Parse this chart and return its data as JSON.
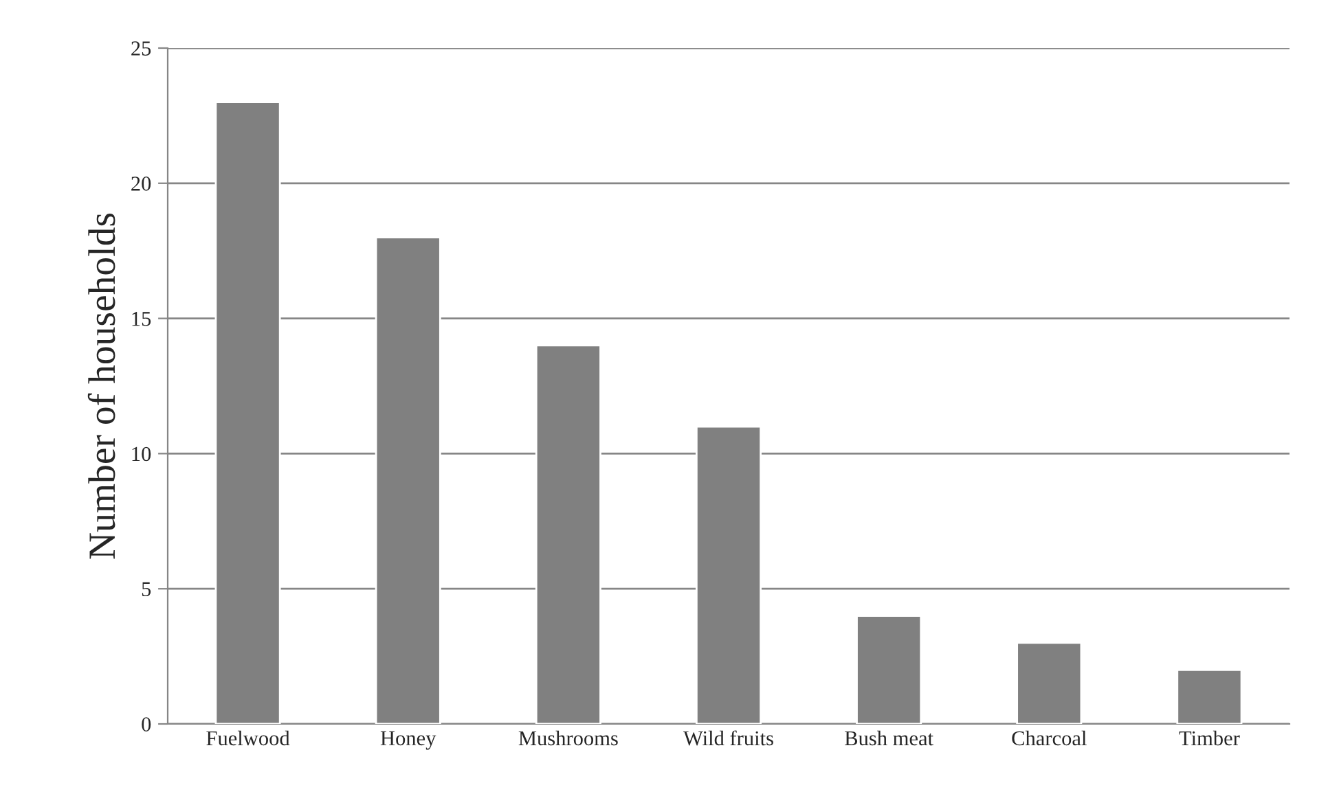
{
  "chart_data": {
    "type": "bar",
    "ylabel": "Number of households",
    "categories": [
      "Fuelwood",
      "Honey",
      "Mushrooms",
      "Wild fruits",
      "Bush meat",
      "Charcoal",
      "Timber"
    ],
    "values": [
      23,
      18,
      14,
      11,
      4,
      3,
      2
    ],
    "color": "#808080",
    "ylim": [
      0,
      25
    ],
    "yticks": [
      0,
      5,
      10,
      15,
      20,
      25
    ],
    "grid": "y",
    "legend": false
  }
}
